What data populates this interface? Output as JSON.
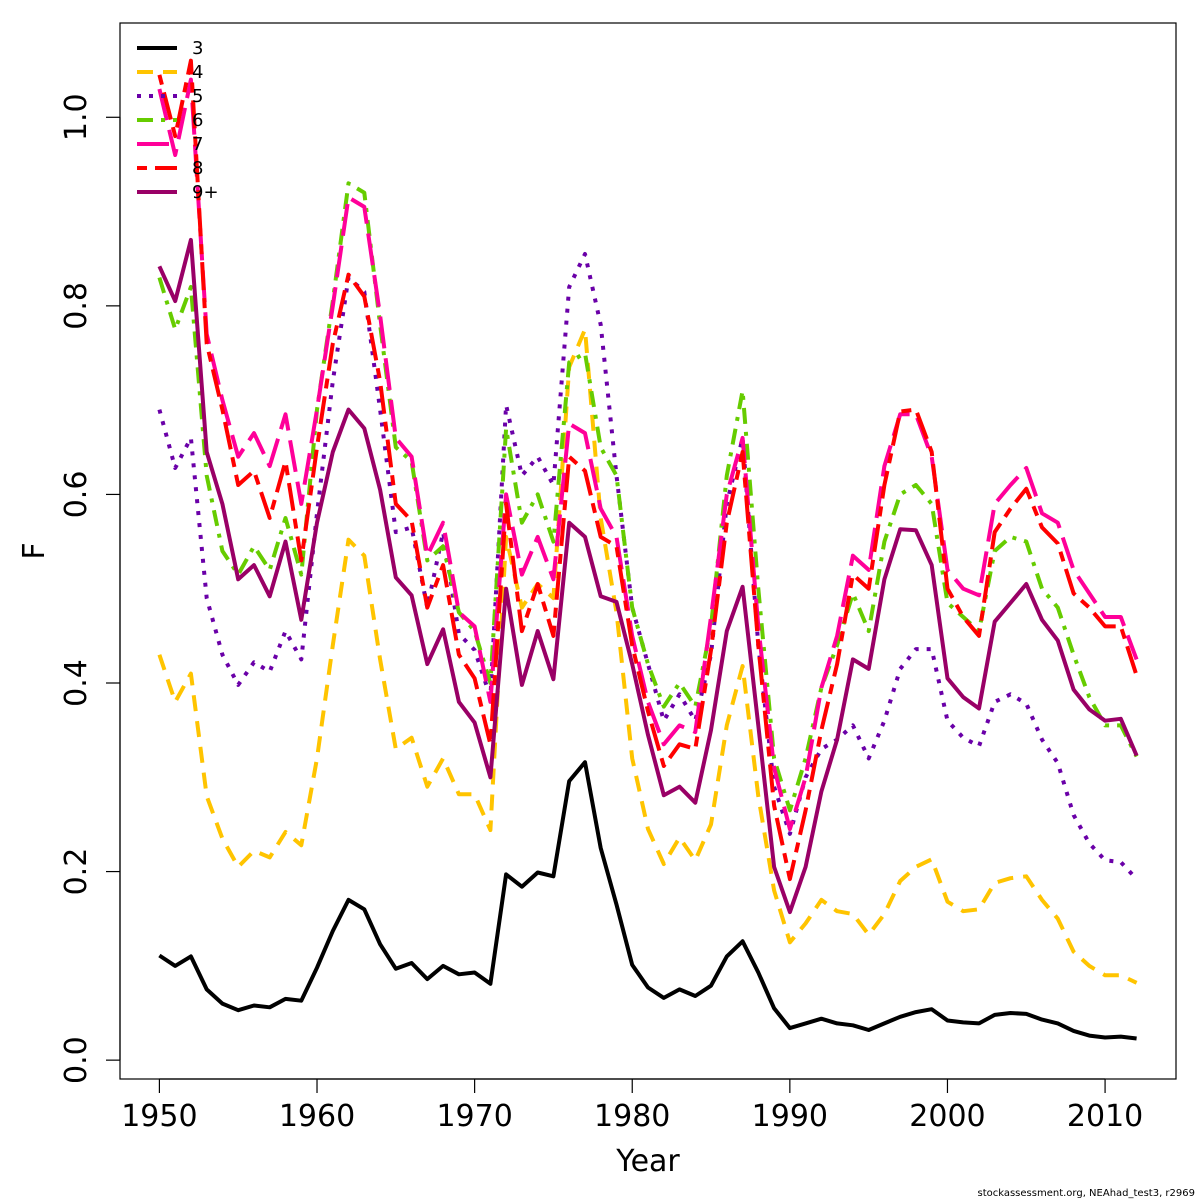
{
  "chart_data": {
    "type": "line",
    "xlabel": "Year",
    "ylabel": "F",
    "xlim": [
      1947.5,
      2014.5
    ],
    "ylim": [
      -0.02,
      1.1
    ],
    "x_ticks": [
      1950,
      1960,
      1970,
      1980,
      1990,
      2000,
      2010
    ],
    "x_tick_labels": [
      "1950",
      "1960",
      "1970",
      "1980",
      "1990",
      "2000",
      "2010"
    ],
    "y_ticks": [
      0.0,
      0.2,
      0.4,
      0.6,
      0.8,
      1.0
    ],
    "y_tick_labels": [
      "0.0",
      "0.2",
      "0.4",
      "0.6",
      "0.8",
      "1.0"
    ],
    "legend_position": "top-left",
    "x": [
      1950,
      1951,
      1952,
      1953,
      1954,
      1955,
      1956,
      1957,
      1958,
      1959,
      1960,
      1961,
      1962,
      1963,
      1964,
      1965,
      1966,
      1967,
      1968,
      1969,
      1970,
      1971,
      1972,
      1973,
      1974,
      1975,
      1976,
      1977,
      1978,
      1979,
      1980,
      1981,
      1982,
      1983,
      1984,
      1985,
      1986,
      1987,
      1988,
      1989,
      1990,
      1991,
      1992,
      1993,
      1994,
      1995,
      1996,
      1997,
      1998,
      1999,
      2000,
      2001,
      2002,
      2003,
      2004,
      2005,
      2006,
      2007,
      2008,
      2009,
      2010,
      2011,
      2012
    ],
    "series": [
      {
        "name": "3",
        "color": "#000000",
        "dash": "solid",
        "width": 4,
        "values": [
          0.111,
          0.1,
          0.11,
          0.075,
          0.06,
          0.053,
          0.058,
          0.056,
          0.065,
          0.063,
          0.098,
          0.137,
          0.17,
          0.16,
          0.123,
          0.097,
          0.103,
          0.086,
          0.1,
          0.091,
          0.093,
          0.081,
          0.197,
          0.184,
          0.199,
          0.195,
          0.296,
          0.316,
          0.225,
          0.165,
          0.101,
          0.077,
          0.066,
          0.075,
          0.068,
          0.079,
          0.11,
          0.126,
          0.093,
          0.055,
          0.034,
          0.039,
          0.044,
          0.039,
          0.037,
          0.032,
          0.039,
          0.046,
          0.051,
          0.054,
          0.042,
          0.04,
          0.039,
          0.048,
          0.05,
          0.049,
          0.043,
          0.039,
          0.031,
          0.026,
          0.024,
          0.025,
          0.023
        ]
      },
      {
        "name": "4",
        "color": "#ffc400",
        "dash": "dashed",
        "width": 4,
        "values": [
          0.43,
          0.38,
          0.41,
          0.28,
          0.235,
          0.205,
          0.222,
          0.215,
          0.242,
          0.228,
          0.32,
          0.44,
          0.552,
          0.535,
          0.425,
          0.33,
          0.342,
          0.29,
          0.32,
          0.282,
          0.282,
          0.244,
          0.555,
          0.48,
          0.505,
          0.49,
          0.735,
          0.775,
          0.575,
          0.475,
          0.32,
          0.245,
          0.208,
          0.236,
          0.212,
          0.25,
          0.355,
          0.418,
          0.28,
          0.18,
          0.125,
          0.145,
          0.17,
          0.158,
          0.155,
          0.133,
          0.155,
          0.19,
          0.205,
          0.213,
          0.168,
          0.158,
          0.16,
          0.188,
          0.193,
          0.195,
          0.17,
          0.15,
          0.115,
          0.1,
          0.09,
          0.09,
          0.082
        ]
      },
      {
        "name": "5",
        "color": "#6a00a8",
        "dash": "dotted",
        "width": 4,
        "values": [
          0.69,
          0.628,
          0.66,
          0.49,
          0.43,
          0.398,
          0.422,
          0.412,
          0.455,
          0.425,
          0.58,
          0.72,
          0.83,
          0.815,
          0.69,
          0.56,
          0.565,
          0.48,
          0.56,
          0.452,
          0.435,
          0.385,
          0.695,
          0.62,
          0.64,
          0.61,
          0.82,
          0.855,
          0.78,
          0.62,
          0.48,
          0.42,
          0.36,
          0.388,
          0.36,
          0.43,
          0.59,
          0.66,
          0.44,
          0.29,
          0.24,
          0.3,
          0.33,
          0.34,
          0.355,
          0.32,
          0.36,
          0.415,
          0.436,
          0.436,
          0.36,
          0.342,
          0.333,
          0.38,
          0.388,
          0.378,
          0.34,
          0.315,
          0.26,
          0.23,
          0.212,
          0.21,
          0.192
        ]
      },
      {
        "name": "6",
        "color": "#66cc00",
        "dash": "dashdot",
        "width": 4,
        "values": [
          0.83,
          0.775,
          0.82,
          0.62,
          0.54,
          0.515,
          0.545,
          0.52,
          0.575,
          0.515,
          0.69,
          0.805,
          0.93,
          0.92,
          0.78,
          0.65,
          0.635,
          0.53,
          0.545,
          0.475,
          0.455,
          0.4,
          0.67,
          0.57,
          0.6,
          0.55,
          0.74,
          0.75,
          0.65,
          0.62,
          0.48,
          0.42,
          0.375,
          0.4,
          0.375,
          0.46,
          0.62,
          0.71,
          0.5,
          0.32,
          0.265,
          0.32,
          0.395,
          0.44,
          0.495,
          0.455,
          0.55,
          0.6,
          0.61,
          0.59,
          0.485,
          0.47,
          0.455,
          0.54,
          0.555,
          0.55,
          0.5,
          0.48,
          0.43,
          0.385,
          0.355,
          0.355,
          0.322
        ]
      },
      {
        "name": "7",
        "color": "#ff0099",
        "dash": "longdash",
        "width": 4,
        "values": [
          1.03,
          0.96,
          1.04,
          0.77,
          0.7,
          0.64,
          0.665,
          0.63,
          0.685,
          0.59,
          0.69,
          0.8,
          0.915,
          0.905,
          0.79,
          0.66,
          0.64,
          0.535,
          0.57,
          0.475,
          0.46,
          0.38,
          0.6,
          0.515,
          0.555,
          0.51,
          0.675,
          0.665,
          0.585,
          0.555,
          0.45,
          0.38,
          0.335,
          0.355,
          0.348,
          0.47,
          0.6,
          0.66,
          0.46,
          0.31,
          0.245,
          0.3,
          0.395,
          0.45,
          0.535,
          0.52,
          0.63,
          0.685,
          0.685,
          0.64,
          0.52,
          0.5,
          0.493,
          0.59,
          0.61,
          0.628,
          0.58,
          0.57,
          0.52,
          0.495,
          0.47,
          0.47,
          0.425
        ]
      },
      {
        "name": "8",
        "color": "#ff0000",
        "dash": "twodash",
        "width": 4,
        "values": [
          1.045,
          0.98,
          1.06,
          0.76,
          0.69,
          0.61,
          0.625,
          0.575,
          0.635,
          0.53,
          0.65,
          0.76,
          0.833,
          0.81,
          0.72,
          0.59,
          0.572,
          0.48,
          0.525,
          0.43,
          0.405,
          0.335,
          0.59,
          0.455,
          0.505,
          0.45,
          0.64,
          0.625,
          0.555,
          0.545,
          0.44,
          0.37,
          0.312,
          0.335,
          0.33,
          0.435,
          0.57,
          0.645,
          0.44,
          0.27,
          0.192,
          0.265,
          0.35,
          0.42,
          0.515,
          0.5,
          0.61,
          0.688,
          0.69,
          0.645,
          0.5,
          0.47,
          0.45,
          0.56,
          0.585,
          0.606,
          0.565,
          0.548,
          0.495,
          0.48,
          0.46,
          0.46,
          0.408
        ]
      },
      {
        "name": "9+",
        "color": "#990066",
        "dash": "solid",
        "width": 4,
        "values": [
          0.842,
          0.805,
          0.87,
          0.645,
          0.59,
          0.51,
          0.525,
          0.492,
          0.55,
          0.467,
          0.57,
          0.645,
          0.69,
          0.67,
          0.605,
          0.512,
          0.493,
          0.42,
          0.457,
          0.38,
          0.358,
          0.3,
          0.5,
          0.398,
          0.455,
          0.404,
          0.57,
          0.555,
          0.492,
          0.486,
          0.42,
          0.345,
          0.281,
          0.29,
          0.273,
          0.35,
          0.455,
          0.502,
          0.355,
          0.205,
          0.157,
          0.205,
          0.285,
          0.34,
          0.425,
          0.415,
          0.51,
          0.563,
          0.562,
          0.525,
          0.405,
          0.385,
          0.373,
          0.465,
          0.485,
          0.505,
          0.467,
          0.445,
          0.393,
          0.372,
          0.36,
          0.362,
          0.323
        ]
      }
    ]
  },
  "credit": "stockassessment.org, NEAhad_test3, r2969"
}
